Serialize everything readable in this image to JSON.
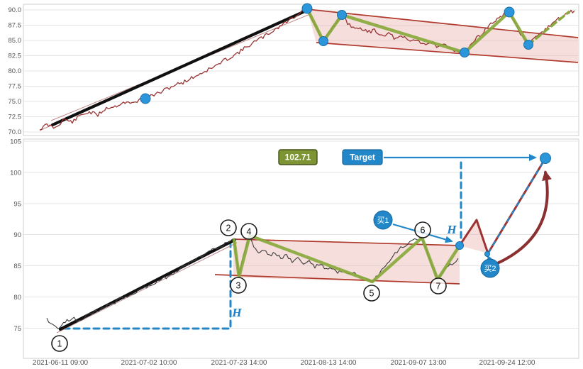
{
  "axes": {
    "top_y": [
      "90.0",
      "87.5",
      "85.0",
      "82.5",
      "80.0",
      "77.5",
      "75.0",
      "72.5",
      "70.0"
    ],
    "bottom_y": [
      "105",
      "100",
      "95",
      "90",
      "85",
      "80",
      "75"
    ],
    "x": [
      "2021-06-11 09:00",
      "2021-07-02 10:00",
      "2021-07-23 14:00",
      "2021-08-13 14:00",
      "2021-09-07 13:00",
      "2021-09-24 12:00"
    ]
  },
  "annotations": {
    "target_price": "102.71",
    "target_label": "Target",
    "buy1_label": "买1",
    "buy2_label": "买2",
    "h_label": "H",
    "pivot_numbers": [
      "1",
      "2",
      "3",
      "4",
      "5",
      "6",
      "7"
    ]
  },
  "colors": {
    "price_top": "#993333",
    "price_bottom": "#3c3c3c",
    "trendline": "#101010",
    "zigzag": "#88a93c",
    "flag_fill": "#e8b0aa",
    "flag_border": "#b03a2e",
    "pivot_dot": "#2b96d9",
    "dashed_blue": "#2187c8",
    "target_badge_green": "#7d9432",
    "signal_blue": "#2187c8",
    "curved_arrow": "#8a3030"
  },
  "chart_data": [
    {
      "type": "line",
      "panel": "top",
      "title": "",
      "ylim": [
        70,
        90
      ],
      "y_ticks": [
        90.0,
        87.5,
        85.0,
        82.5,
        80.0,
        77.5,
        75.0,
        72.5,
        70.0
      ],
      "grid": true,
      "pattern": "uptrend flagpole into descending flag channel with breakout",
      "series": [
        {
          "name": "price",
          "color": "#993333",
          "approx_pivots": [
            {
              "label": "start",
              "price": 70.8
            },
            {
              "label": "trend-dot",
              "price": 75.5
            },
            {
              "label": "peak",
              "price": 90.0
            },
            {
              "label": "flag-low-1",
              "price": 84.9
            },
            {
              "label": "flag-high-1",
              "price": 89.1
            },
            {
              "label": "flag-low-2",
              "price": 83.0
            },
            {
              "label": "flag-high-2",
              "price": 89.5
            },
            {
              "label": "flag-low-3",
              "price": 84.3
            },
            {
              "label": "breakout-end",
              "price": 89.8
            }
          ]
        }
      ]
    },
    {
      "type": "line",
      "panel": "bottom",
      "title": "",
      "ylim": [
        75,
        105
      ],
      "y_ticks": [
        105,
        100,
        95,
        90,
        85,
        80,
        75
      ],
      "x_ticks": [
        "2021-06-11 09:00",
        "2021-07-02 10:00",
        "2021-07-23 14:00",
        "2021-08-13 14:00",
        "2021-09-07 13:00",
        "2021-09-24 12:00"
      ],
      "grid": true,
      "pattern": "numbered pivot flag pattern with measured move H to target",
      "pivots": [
        {
          "label": "1",
          "price": 75.0
        },
        {
          "label": "2",
          "price": 89.4
        },
        {
          "label": "3",
          "price": 83.2
        },
        {
          "label": "4",
          "price": 90.0
        },
        {
          "label": "5",
          "price": 82.3
        },
        {
          "label": "6",
          "price": 89.6
        },
        {
          "label": "7",
          "price": 82.7
        }
      ],
      "signals": [
        {
          "label": "买1",
          "price": 88.2
        },
        {
          "label": "买2",
          "price": 86.9
        }
      ],
      "target": {
        "label": "Target",
        "price": 102.71
      },
      "measured_move_label": "H"
    }
  ]
}
